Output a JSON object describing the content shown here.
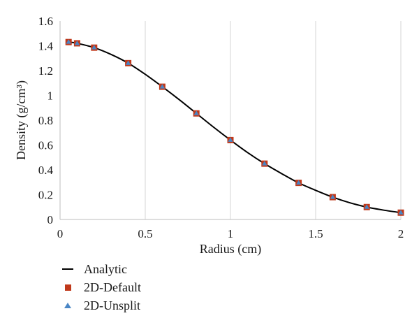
{
  "chart_data": {
    "type": "scatter",
    "xlabel": "Radius (cm)",
    "ylabel": "Density (g/cm³)",
    "xlim": [
      0,
      2
    ],
    "ylim": [
      0,
      1.6
    ],
    "xticks": [
      0,
      0.5,
      1,
      1.5,
      2
    ],
    "xtick_labels": [
      "0",
      "0.5",
      "1",
      "1.5",
      "2"
    ],
    "yticks": [
      0,
      0.2,
      0.4,
      0.6,
      0.8,
      1.0,
      1.2,
      1.4,
      1.6
    ],
    "ytick_labels": [
      "0",
      "0.2",
      "0.4",
      "0.6",
      "0.8",
      "1",
      "1.2",
      "1.4",
      "1.6"
    ],
    "grid": "vertical",
    "legend_position": "bottom-left",
    "series": [
      {
        "name": "Analytic",
        "style": "line",
        "color": "#000000",
        "x": [
          0.05,
          0.1,
          0.2,
          0.3,
          0.4,
          0.5,
          0.6,
          0.7,
          0.8,
          0.9,
          1.0,
          1.1,
          1.2,
          1.3,
          1.4,
          1.5,
          1.6,
          1.7,
          1.8,
          1.9,
          2.0
        ],
        "y": [
          1.43,
          1.42,
          1.385,
          1.33,
          1.26,
          1.17,
          1.07,
          0.965,
          0.855,
          0.745,
          0.64,
          0.54,
          0.45,
          0.37,
          0.295,
          0.235,
          0.18,
          0.135,
          0.1,
          0.075,
          0.055
        ]
      },
      {
        "name": "2D-Default",
        "style": "square",
        "color": "#c0391b",
        "x": [
          0.05,
          0.1,
          0.2,
          0.4,
          0.6,
          0.8,
          1.0,
          1.2,
          1.4,
          1.6,
          1.8,
          2.0
        ],
        "y": [
          1.43,
          1.42,
          1.385,
          1.26,
          1.07,
          0.855,
          0.64,
          0.45,
          0.295,
          0.18,
          0.1,
          0.055
        ]
      },
      {
        "name": "2D-Unsplit",
        "style": "triangle",
        "color": "#4a86c5",
        "x": [
          0.05,
          0.1,
          0.2,
          0.4,
          0.6,
          0.8,
          1.0,
          1.2,
          1.4,
          1.6,
          1.8,
          2.0
        ],
        "y": [
          1.43,
          1.42,
          1.385,
          1.26,
          1.07,
          0.855,
          0.64,
          0.45,
          0.295,
          0.18,
          0.1,
          0.055
        ]
      }
    ]
  }
}
